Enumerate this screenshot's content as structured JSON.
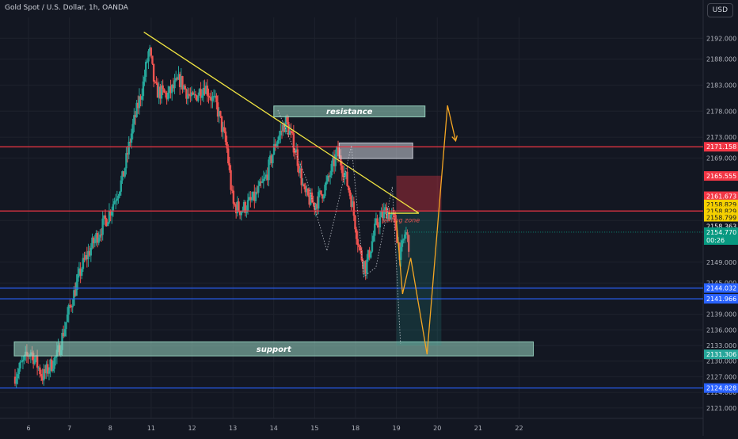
{
  "header": {
    "title": "Gold Spot / U.S. Dollar, 1h, OANDA",
    "currency_button": "USD"
  },
  "colors": {
    "background": "#131722",
    "up": "#26a69a",
    "down": "#ef5350",
    "trendline": "#f0e442",
    "projection": "#f5a623",
    "red_level": "#f23645",
    "blue_level": "#2962ff",
    "zone": "#9bd8c4"
  },
  "chart_data": {
    "type": "candlestick",
    "symbol": "Gold Spot / U.S. Dollar",
    "interval": "1h",
    "source": "OANDA",
    "ylim": [
      2119,
      2196
    ],
    "xlim": [
      5.65,
      22.35
    ],
    "y_ticks": [
      2192.0,
      2188.0,
      2183.0,
      2178.0,
      2173.0,
      2169.0,
      2157.0,
      2149.0,
      2145.0,
      2139.0,
      2136.0,
      2133.0,
      2130.0,
      2127.0,
      2124.0,
      2121.0
    ],
    "x_ticks": [
      {
        "label": "6",
        "x": 6
      },
      {
        "label": "7",
        "x": 7
      },
      {
        "label": "8",
        "x": 8
      },
      {
        "label": "11",
        "x": 9
      },
      {
        "label": "12",
        "x": 10
      },
      {
        "label": "13",
        "x": 11
      },
      {
        "label": "14",
        "x": 12
      },
      {
        "label": "15",
        "x": 13
      },
      {
        "label": "18",
        "x": 14
      },
      {
        "label": "19",
        "x": 15
      },
      {
        "label": "20",
        "x": 16
      },
      {
        "label": "21",
        "x": 17
      },
      {
        "label": "22",
        "x": 18
      }
    ],
    "current_price": {
      "value": "2154.770",
      "countdown": "00:26"
    },
    "horizontal_levels": [
      {
        "label": "2171.158",
        "value": 2171.158,
        "color": "#f23645"
      },
      {
        "label": "2158.829",
        "value": 2158.829,
        "color": "#f23645"
      },
      {
        "label": "2144.032",
        "value": 2144.032,
        "color": "#2962ff"
      },
      {
        "label": "2141.966",
        "value": 2141.966,
        "color": "#2962ff"
      },
      {
        "label": "2124.828",
        "value": 2124.828,
        "color": "#2962ff"
      }
    ],
    "position_labels": [
      {
        "label": "2165.555",
        "value": 2165.555,
        "color": "#f23645"
      },
      {
        "label": "2161.673",
        "value": 2161.673,
        "color": "#f23645"
      },
      {
        "label": "2158.829",
        "value": 2160.1,
        "color": "#f5d000"
      },
      {
        "label": "2158.829",
        "value": 2158.829,
        "color": "#f5d000"
      },
      {
        "label": "2158.799",
        "value": 2157.6,
        "color": "#f5d000"
      },
      {
        "label": "2158.363",
        "value": 2155.9,
        "color": "#131722"
      },
      {
        "label": "2131.306",
        "value": 2131.306,
        "color": "#26a69a"
      }
    ],
    "zones": [
      {
        "label": "resistance",
        "x1": 12.0,
        "x2": 15.7,
        "y1": 2176.9,
        "y2": 2179.0,
        "fill": "#9bd8c4"
      },
      {
        "label": "",
        "x1": 13.6,
        "x2": 15.4,
        "y1": 2168.9,
        "y2": 2171.9,
        "fill": "#cfd3dc"
      },
      {
        "label": "support",
        "x1": 5.65,
        "x2": 18.35,
        "y1": 2131.0,
        "y2": 2133.7,
        "fill": "#9bd8c4"
      }
    ],
    "selling_zone": {
      "label": "selling zone",
      "x1": 15.0,
      "x2": 16.1,
      "y_entry": 2158.8,
      "y_stop": 2165.6,
      "y_target": 2133.0
    },
    "trendline": [
      [
        8.82,
        2193.2
      ],
      [
        15.55,
        2158.4
      ]
    ],
    "selling_zone_line": [
      [
        14.8,
        2158.4
      ],
      [
        15.55,
        2158.4
      ]
    ],
    "wave_path": [
      [
        12.1,
        2178.2
      ],
      [
        12.8,
        2164.9
      ],
      [
        13.3,
        2151.2
      ],
      [
        13.9,
        2171.4
      ],
      [
        14.2,
        2146.2
      ],
      [
        14.5,
        2148.0
      ],
      [
        14.9,
        2163.5
      ],
      [
        15.1,
        2133.4
      ]
    ],
    "projection_path": [
      [
        15.0,
        2157.0
      ],
      [
        15.15,
        2142.9
      ],
      [
        15.35,
        2149.8
      ],
      [
        15.75,
        2131.3
      ],
      [
        16.25,
        2179.1
      ],
      [
        16.45,
        2172.3
      ]
    ],
    "candles_sample": [
      [
        6.0,
        2128.5,
        2131.6,
        2127.3,
        2130.4
      ],
      [
        6.5,
        2129.1,
        2132.3,
        2126.4,
        2128.7
      ],
      [
        7.0,
        2137.8,
        2143.2,
        2135.9,
        2142.1
      ],
      [
        7.5,
        2148.3,
        2152.6,
        2146.7,
        2150.9
      ],
      [
        8.0,
        2156.4,
        2159.8,
        2154.2,
        2158.1
      ],
      [
        8.5,
        2168.7,
        2173.9,
        2165.3,
        2171.2
      ],
      [
        9.0,
        2180.2,
        2185.4,
        2177.6,
        2182.8
      ],
      [
        9.5,
        2182.9,
        2186.1,
        2179.3,
        2180.5
      ],
      [
        10.0,
        2181.4,
        2184.7,
        2178.8,
        2183.0
      ],
      [
        10.5,
        2179.6,
        2182.3,
        2176.1,
        2177.4
      ],
      [
        11.0,
        2162.3,
        2165.8,
        2158.9,
        2160.7
      ],
      [
        11.5,
        2160.8,
        2164.2,
        2157.3,
        2162.5
      ],
      [
        12.0,
        2168.5,
        2174.3,
        2166.8,
        2172.6
      ],
      [
        12.5,
        2170.1,
        2173.7,
        2167.2,
        2168.4
      ],
      [
        13.0,
        2161.2,
        2164.3,
        2158.1,
        2162.9
      ],
      [
        13.5,
        2166.4,
        2171.5,
        2164.7,
        2169.8
      ],
      [
        14.0,
        2154.7,
        2157.6,
        2150.3,
        2152.1
      ],
      [
        14.5,
        2150.2,
        2155.8,
        2147.6,
        2154.9
      ],
      [
        15.0,
        2157.3,
        2160.2,
        2152.8,
        2154.8
      ]
    ]
  }
}
